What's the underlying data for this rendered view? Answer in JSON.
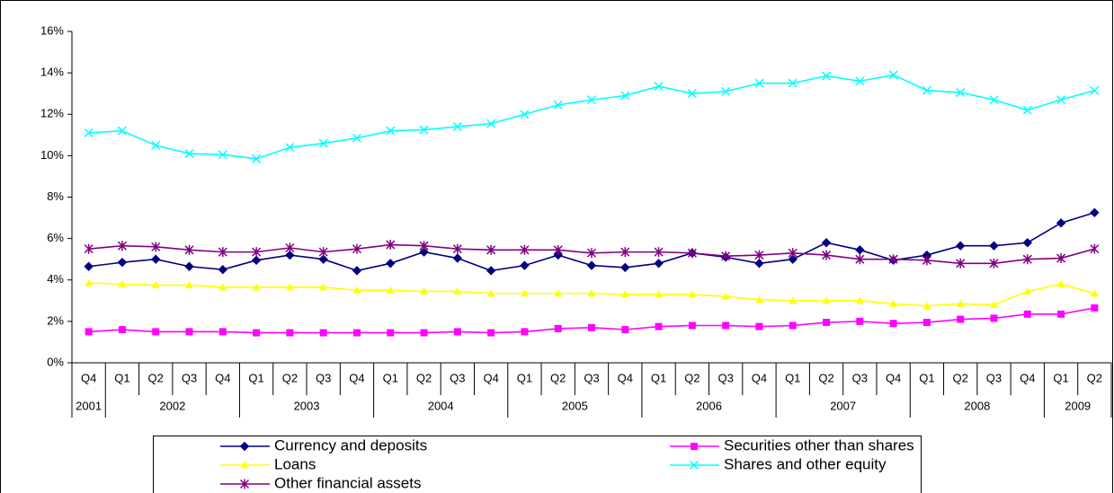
{
  "chart_data": {
    "type": "line",
    "category_groups": [
      {
        "label": "2001",
        "categories": [
          "Q4"
        ]
      },
      {
        "label": "2002",
        "categories": [
          "Q1",
          "Q2",
          "Q3",
          "Q4"
        ]
      },
      {
        "label": "2003",
        "categories": [
          "Q1",
          "Q2",
          "Q3",
          "Q4"
        ]
      },
      {
        "label": "2004",
        "categories": [
          "Q1",
          "Q2",
          "Q3",
          "Q4"
        ]
      },
      {
        "label": "2005",
        "categories": [
          "Q1",
          "Q2",
          "Q3",
          "Q4"
        ]
      },
      {
        "label": "2006",
        "categories": [
          "Q1",
          "Q2",
          "Q3",
          "Q4"
        ]
      },
      {
        "label": "2007",
        "categories": [
          "Q1",
          "Q2",
          "Q3",
          "Q4"
        ]
      },
      {
        "label": "2008",
        "categories": [
          "Q1",
          "Q2",
          "Q3",
          "Q4"
        ]
      },
      {
        "label": "2009",
        "categories": [
          "Q1",
          "Q2"
        ]
      }
    ],
    "ylim": [
      0,
      16
    ],
    "yticks": [
      {
        "value": 0,
        "label": "0%"
      },
      {
        "value": 2,
        "label": "2%"
      },
      {
        "value": 4,
        "label": "4%"
      },
      {
        "value": 6,
        "label": "6%"
      },
      {
        "value": 8,
        "label": "8%"
      },
      {
        "value": 10,
        "label": "10%"
      },
      {
        "value": 12,
        "label": "12%"
      },
      {
        "value": 14,
        "label": "14%"
      },
      {
        "value": 16,
        "label": "16%"
      }
    ],
    "grid": false,
    "series": [
      {
        "name": "Currency and deposits",
        "color": "#000080",
        "marker": "diamond",
        "values": [
          4.65,
          4.85,
          5.0,
          4.65,
          4.5,
          4.95,
          5.2,
          5.0,
          4.45,
          4.8,
          5.35,
          5.05,
          4.45,
          4.7,
          5.2,
          4.7,
          4.6,
          4.8,
          5.3,
          5.1,
          4.8,
          5.0,
          5.8,
          5.45,
          4.95,
          5.2,
          5.65,
          5.65,
          5.8,
          6.75,
          7.25
        ]
      },
      {
        "name": "Securities other than shares",
        "color": "#ff00ff",
        "marker": "square",
        "values": [
          1.5,
          1.6,
          1.5,
          1.5,
          1.5,
          1.45,
          1.45,
          1.45,
          1.45,
          1.45,
          1.45,
          1.5,
          1.45,
          1.5,
          1.65,
          1.7,
          1.6,
          1.75,
          1.8,
          1.8,
          1.75,
          1.8,
          1.95,
          2.0,
          1.9,
          1.95,
          2.1,
          2.15,
          2.35,
          2.35,
          2.65
        ]
      },
      {
        "name": "Loans",
        "color": "#ffff00",
        "marker": "triangle",
        "values": [
          3.85,
          3.8,
          3.75,
          3.75,
          3.65,
          3.65,
          3.65,
          3.65,
          3.5,
          3.5,
          3.45,
          3.45,
          3.35,
          3.35,
          3.35,
          3.35,
          3.3,
          3.3,
          3.3,
          3.2,
          3.05,
          3.0,
          3.0,
          3.0,
          2.85,
          2.75,
          2.85,
          2.8,
          3.45,
          3.8,
          3.35
        ]
      },
      {
        "name": "Shares and other equity",
        "color": "#00ffff",
        "marker": "x",
        "values": [
          11.1,
          11.2,
          10.5,
          10.1,
          10.05,
          9.85,
          10.4,
          10.6,
          10.85,
          11.2,
          11.25,
          11.4,
          11.55,
          12.0,
          12.45,
          12.7,
          12.9,
          13.35,
          13.0,
          13.1,
          13.5,
          13.5,
          13.85,
          13.6,
          13.9,
          13.15,
          13.05,
          12.7,
          12.2,
          12.7,
          13.15
        ]
      },
      {
        "name": "Other financial assets",
        "color": "#800080",
        "marker": "asterisk",
        "values": [
          5.5,
          5.65,
          5.6,
          5.45,
          5.35,
          5.35,
          5.55,
          5.35,
          5.5,
          5.7,
          5.65,
          5.5,
          5.45,
          5.45,
          5.45,
          5.3,
          5.35,
          5.35,
          5.3,
          5.15,
          5.2,
          5.3,
          5.2,
          5.0,
          5.0,
          4.95,
          4.8,
          4.8,
          5.0,
          5.05,
          5.5
        ]
      }
    ]
  }
}
